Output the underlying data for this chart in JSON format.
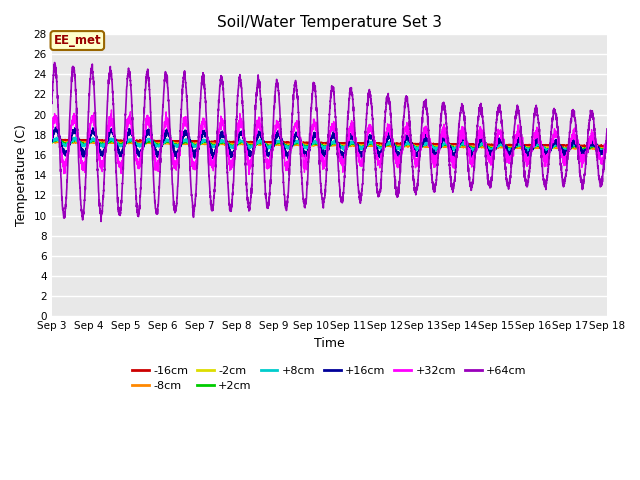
{
  "title": "Soil/Water Temperature Set 3",
  "xlabel": "Time",
  "ylabel": "Temperature (C)",
  "ylim": [
    0,
    28
  ],
  "yticks": [
    0,
    2,
    4,
    6,
    8,
    10,
    12,
    14,
    16,
    18,
    20,
    22,
    24,
    26,
    28
  ],
  "fig_bg_color": "#ffffff",
  "plot_bg_color": "#e8e8e8",
  "grid_color": "#ffffff",
  "series": [
    {
      "label": "-16cm",
      "color": "#cc0000",
      "lw": 1.0
    },
    {
      "label": "-8cm",
      "color": "#ff8800",
      "lw": 1.0
    },
    {
      "label": "-2cm",
      "color": "#dddd00",
      "lw": 1.0
    },
    {
      "label": "+2cm",
      "color": "#00cc00",
      "lw": 1.0
    },
    {
      "label": "+8cm",
      "color": "#00cccc",
      "lw": 1.0
    },
    {
      "label": "+16cm",
      "color": "#000099",
      "lw": 1.2
    },
    {
      "label": "+32cm",
      "color": "#ff00ff",
      "lw": 1.0
    },
    {
      "label": "+64cm",
      "color": "#9900bb",
      "lw": 1.2
    }
  ],
  "date_start": 3,
  "date_end": 18,
  "annotation_text": "EE_met",
  "annotation_bg": "#ffffcc",
  "annotation_border": "#996600",
  "annotation_text_color": "#990000"
}
